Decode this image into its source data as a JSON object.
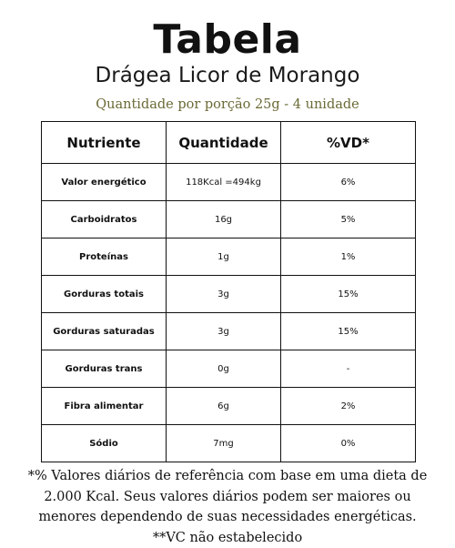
{
  "header": {
    "title": "Tabela",
    "subtitle": "Drágea Licor de Morango",
    "serving": "Quantidade por porção 25g - 4 unidade"
  },
  "table": {
    "headers": [
      "Nutriente",
      "Quantidade",
      "%VD*"
    ],
    "rows": [
      {
        "nutrient": "Valor energético",
        "quantity": "118Kcal =494kg",
        "vd": "6%"
      },
      {
        "nutrient": "Carboidratos",
        "quantity": "16g",
        "vd": "5%"
      },
      {
        "nutrient": "Proteínas",
        "quantity": "1g",
        "vd": "1%"
      },
      {
        "nutrient": "Gorduras totais",
        "quantity": "3g",
        "vd": "15%"
      },
      {
        "nutrient": "Gorduras saturadas",
        "quantity": "3g",
        "vd": "15%"
      },
      {
        "nutrient": "Gorduras trans",
        "quantity": "0g",
        "vd": "-"
      },
      {
        "nutrient": "Fibra alimentar",
        "quantity": "6g",
        "vd": "2%"
      },
      {
        "nutrient": "Sódio",
        "quantity": "7mg",
        "vd": "0%"
      }
    ]
  },
  "footnote": "*% Valores diários de referência com base em uma dieta de 2.000 Kcal. Seus valores diários podem ser maiores ou menores dependendo de suas necessidades energéticas. **VC não estabelecido"
}
